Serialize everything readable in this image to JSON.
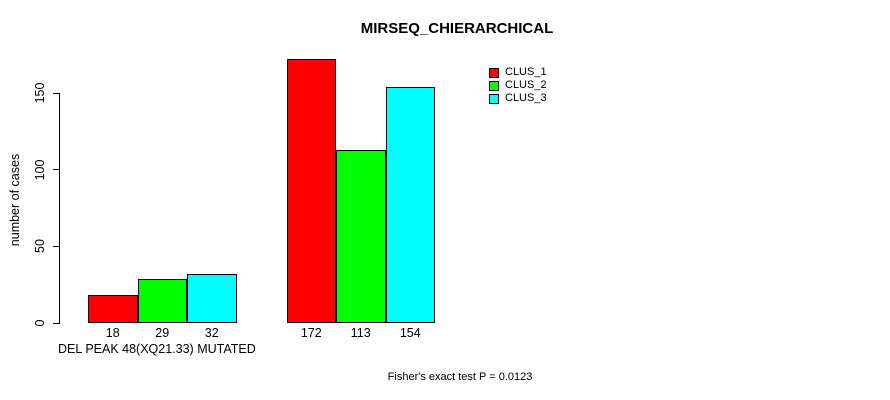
{
  "chart_data": {
    "type": "bar",
    "title": "MIRSEQ_CHIERARCHICAL",
    "xlabel": "DEL PEAK 48(XQ21.33) MUTATED",
    "ylabel": "number of cases",
    "categories": [
      "",
      ""
    ],
    "series": [
      {
        "name": "CLUS_1",
        "color": "#ff0000",
        "values": [
          18,
          172
        ]
      },
      {
        "name": "CLUS_2",
        "color": "#00ff00",
        "values": [
          29,
          113
        ]
      },
      {
        "name": "CLUS_3",
        "color": "#00ffff",
        "values": [
          32,
          154
        ]
      }
    ],
    "yticks": [
      0,
      50,
      100,
      150
    ],
    "ylim": [
      0,
      172
    ],
    "grid": false,
    "show_value_labels": true,
    "legend_position": "top-right",
    "axis_color": "#000000",
    "footnote": "Fisher's exact test P = 0.0123"
  }
}
